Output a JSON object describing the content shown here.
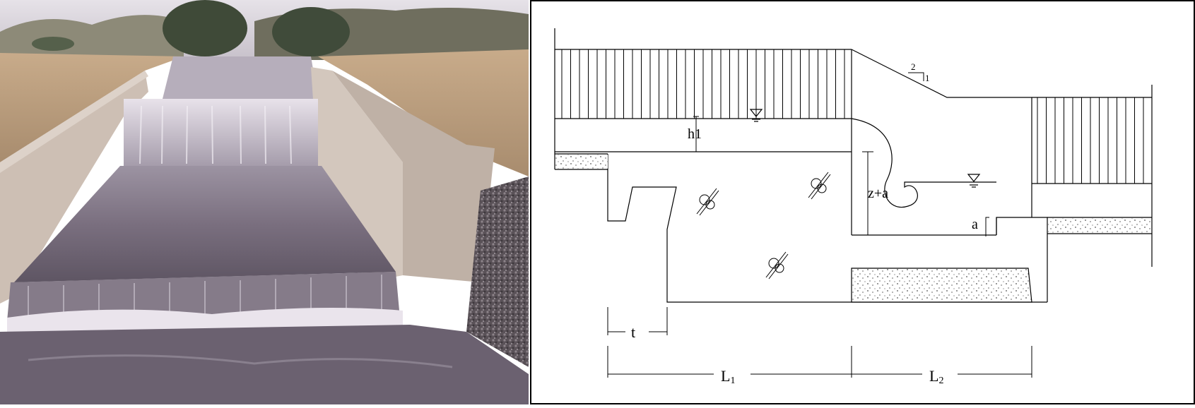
{
  "diagram": {
    "labels": {
      "h1": "h1",
      "z_plus_a": "z+a",
      "a": "a",
      "t": "t",
      "L1_main": "L",
      "L1_sub": "1",
      "L2_main": "L",
      "L2_sub": "2",
      "slope_rise": "2",
      "slope_run": "1"
    }
  },
  "colors": {
    "photo_sky": "#c9c3cc",
    "photo_water": "#7a6f7f",
    "photo_concrete": "#cdbfb4",
    "photo_soil": "#bfa17f",
    "line": "#000000"
  }
}
